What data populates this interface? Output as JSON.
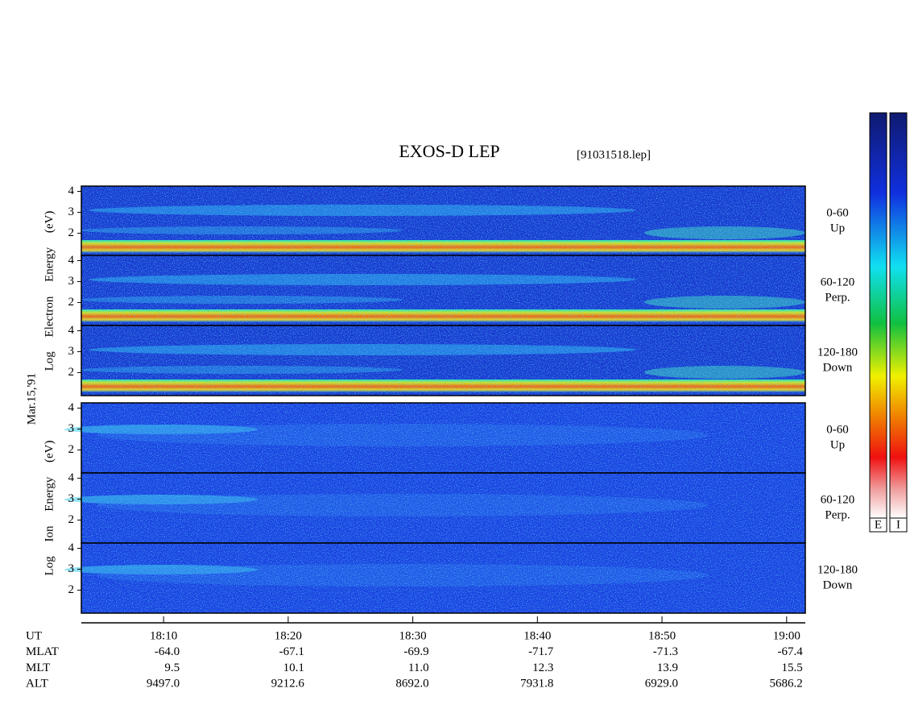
{
  "chart_data": {
    "type": "spectrogram",
    "title": "EXOS-D LEP",
    "subtitle": "[91031518.lep]",
    "date": "Mar.15,'91",
    "xlim": [
      1083.4,
      1141.5
    ],
    "xticks": [
      {
        "value": 1090,
        "label": "18:10"
      },
      {
        "value": 1100,
        "label": "18:20"
      },
      {
        "value": 1110,
        "label": "18:30"
      },
      {
        "value": 1120,
        "label": "18:40"
      },
      {
        "value": 1130,
        "label": "18:50"
      },
      {
        "value": 1140,
        "label": "19:00"
      }
    ],
    "ylim": [
      0.9,
      4.25
    ],
    "yticks": [
      2,
      3,
      4
    ],
    "groups": [
      {
        "ylabel": "Log Electron Energy (eV)",
        "panels": [
          {
            "label": "0-60",
            "sublabel": "Up"
          },
          {
            "label": "60-120",
            "sublabel": "Perp."
          },
          {
            "label": "120-180",
            "sublabel": "Down"
          }
        ]
      },
      {
        "ylabel": "Log Ion Energy (eV)",
        "panels": [
          {
            "label": "0-60",
            "sublabel": "Up"
          },
          {
            "label": "60-120",
            "sublabel": "Perp."
          },
          {
            "label": "120-180",
            "sublabel": "Down"
          }
        ]
      }
    ],
    "ephemeris": {
      "rows": [
        {
          "label": "UT"
        },
        {
          "label": "MLAT",
          "values": [
            "-64.0",
            "-67.1",
            "-69.9",
            "-71.7",
            "-71.3",
            "-67.4"
          ]
        },
        {
          "label": "MLT",
          "values": [
            "9.5",
            "10.1",
            "11.0",
            "12.3",
            "13.9",
            "15.5"
          ]
        },
        {
          "label": "ALT",
          "values": [
            "9497.0",
            "9212.6",
            "8692.0",
            "7931.8",
            "6929.0",
            "5686.2"
          ]
        }
      ]
    },
    "colorbar": {
      "labels": [
        "E",
        "I"
      ]
    }
  }
}
